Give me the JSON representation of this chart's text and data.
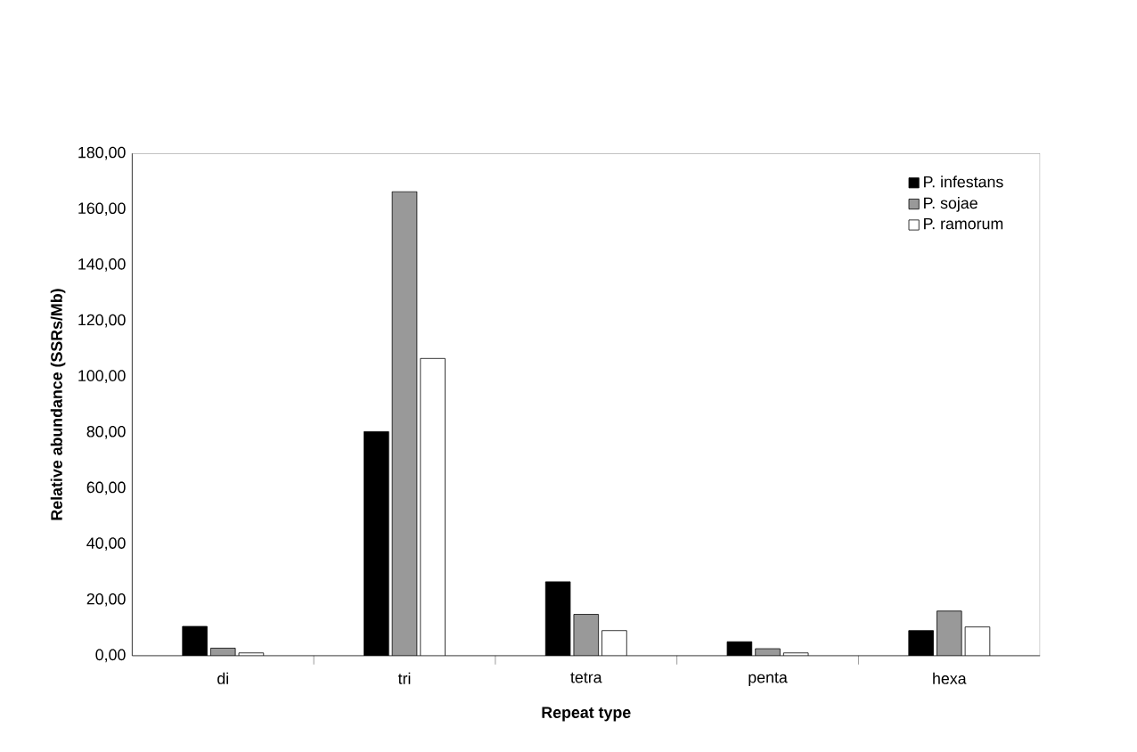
{
  "chart_data": {
    "type": "bar",
    "xlabel": "Repeat type",
    "ylabel": "Relative abundance (SSRs/Mb)",
    "categories": [
      "di",
      "tri",
      "tetra",
      "penta",
      "hexa"
    ],
    "series": [
      {
        "name": "P. infestans",
        "color": "#000000",
        "values": [
          10.5,
          80.3,
          26.5,
          5.0,
          9.0
        ]
      },
      {
        "name": "P. sojae",
        "color": "#999999",
        "values": [
          2.7,
          166.3,
          14.8,
          2.5,
          16.0
        ]
      },
      {
        "name": "P. ramorum",
        "color": "#ffffff",
        "values": [
          1.0,
          106.5,
          9.0,
          1.0,
          10.3
        ]
      }
    ],
    "ylim": [
      0,
      180
    ],
    "yticks": [
      {
        "value": 0,
        "label": "0,00"
      },
      {
        "value": 20,
        "label": "20,00"
      },
      {
        "value": 40,
        "label": "40,00"
      },
      {
        "value": 60,
        "label": "60,00"
      },
      {
        "value": 80,
        "label": "80,00"
      },
      {
        "value": 100,
        "label": "100,00"
      },
      {
        "value": 120,
        "label": "120,00"
      },
      {
        "value": 140,
        "label": "140,00"
      },
      {
        "value": 160,
        "label": "160,00"
      },
      {
        "value": 180,
        "label": "180,00"
      }
    ],
    "legend": "top right",
    "grid": false
  }
}
